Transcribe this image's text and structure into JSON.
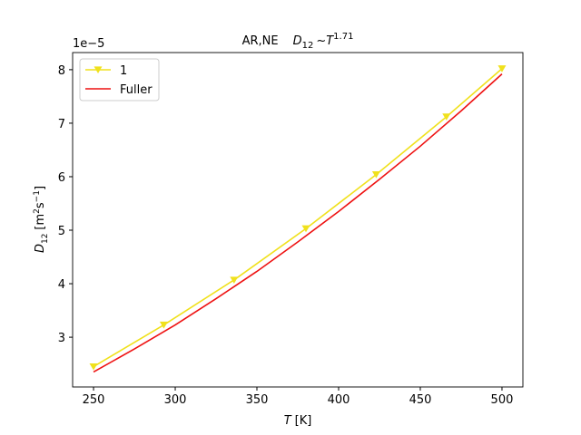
{
  "chart_data": {
    "type": "line",
    "title": {
      "prefix": "AR,NE",
      "symbol": "D",
      "subscript": "12",
      "op": "~",
      "base": "T",
      "exponent": "1.71"
    },
    "xlabel": {
      "symbol": "T",
      "unit": "[K]"
    },
    "ylabel": {
      "symbol": "D",
      "subscript": "12",
      "unit_open": "[m",
      "unit_sup1": "2",
      "unit_mid": "s",
      "unit_sup2": "−1",
      "unit_close": "]"
    },
    "y_offset_label": "1e−5",
    "series": [
      {
        "name": "1",
        "color": "#f0e11c",
        "marker": "v",
        "x": [
          250,
          293,
          336,
          380,
          423,
          466,
          500
        ],
        "values": [
          2.45,
          3.23,
          4.07,
          5.03,
          6.04,
          7.12,
          8.02
        ]
      },
      {
        "name": "Fuller",
        "color": "#ee1111",
        "marker": null,
        "x": [
          250,
          275,
          300,
          325,
          350,
          375,
          400,
          425,
          450,
          475,
          500
        ],
        "values": [
          2.35,
          2.78,
          3.23,
          3.72,
          4.23,
          4.78,
          5.35,
          5.95,
          6.57,
          7.23,
          7.92
        ]
      }
    ],
    "xlim": [
      237.2,
      512.8
    ],
    "xticks": [
      250,
      300,
      350,
      400,
      450,
      500
    ],
    "ylim": [
      2.07,
      8.32
    ],
    "yticks": [
      3,
      4,
      5,
      6,
      7,
      8
    ],
    "grid": false,
    "legend": "upper left"
  }
}
